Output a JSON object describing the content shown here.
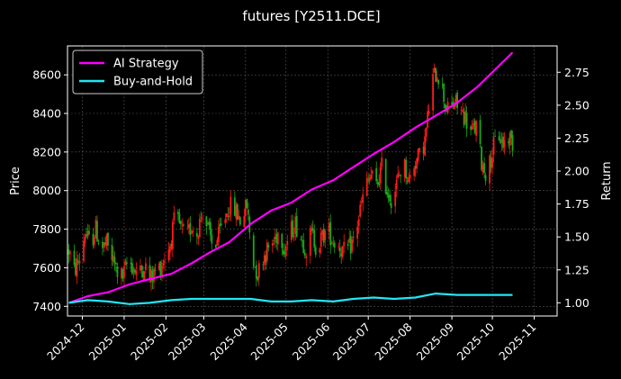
{
  "chart_data": {
    "type": "line",
    "title": "futures [Y2511.DCE]",
    "ylabel": "Price",
    "y2label": "Return",
    "grid": true,
    "legend_position": "top-left",
    "xlim": [
      "2024-11-20",
      "2025-11-18"
    ],
    "ylim": [
      7350,
      8750
    ],
    "y2lim": [
      0.9,
      2.95
    ],
    "x_ticks": [
      "2024-12",
      "2025-01",
      "2025-02",
      "2025-03",
      "2025-04",
      "2025-05",
      "2025-06",
      "2025-07",
      "2025-08",
      "2025-09",
      "2025-10",
      "2025-11"
    ],
    "y_ticks": [
      7400,
      7600,
      7800,
      8000,
      8200,
      8400,
      8600
    ],
    "y2_ticks": [
      "1.00",
      "1.25",
      "1.50",
      "1.75",
      "2.00",
      "2.25",
      "2.50",
      "2.75"
    ],
    "colors": {
      "background": "#000000",
      "grid": "#555555",
      "ai_strategy": "#ff00ff",
      "buy_and_hold": "#22e5f5",
      "candle_up": "#ff1a1a",
      "candle_down": "#1aa81a"
    },
    "price_path": [
      [
        "2024-11-21",
        7690
      ],
      [
        "2024-11-25",
        7580
      ],
      [
        "2024-11-29",
        7650
      ],
      [
        "2024-12-03",
        7780
      ],
      [
        "2024-12-07",
        7720
      ],
      [
        "2024-12-11",
        7800
      ],
      [
        "2024-12-15",
        7700
      ],
      [
        "2024-12-19",
        7720
      ],
      [
        "2024-12-23",
        7650
      ],
      [
        "2024-12-27",
        7580
      ],
      [
        "2024-12-31",
        7550
      ],
      [
        "2025-01-04",
        7640
      ],
      [
        "2025-01-08",
        7600
      ],
      [
        "2025-01-12",
        7560
      ],
      [
        "2025-01-16",
        7620
      ],
      [
        "2025-01-20",
        7540
      ],
      [
        "2025-01-24",
        7580
      ],
      [
        "2025-01-28",
        7610
      ],
      [
        "2025-02-04",
        7720
      ],
      [
        "2025-02-08",
        7870
      ],
      [
        "2025-02-12",
        7800
      ],
      [
        "2025-02-16",
        7750
      ],
      [
        "2025-02-20",
        7820
      ],
      [
        "2025-02-24",
        7780
      ],
      [
        "2025-02-28",
        7900
      ],
      [
        "2025-03-04",
        7800
      ],
      [
        "2025-03-08",
        7700
      ],
      [
        "2025-03-12",
        7760
      ],
      [
        "2025-03-16",
        7850
      ],
      [
        "2025-03-20",
        7920
      ],
      [
        "2025-03-24",
        7900
      ],
      [
        "2025-03-28",
        7850
      ],
      [
        "2025-04-02",
        7920
      ],
      [
        "2025-04-06",
        7650
      ],
      [
        "2025-04-10",
        7570
      ],
      [
        "2025-04-14",
        7660
      ],
      [
        "2025-04-18",
        7700
      ],
      [
        "2025-04-22",
        7740
      ],
      [
        "2025-04-26",
        7800
      ],
      [
        "2025-04-30",
        7700
      ],
      [
        "2025-05-04",
        7780
      ],
      [
        "2025-05-08",
        7830
      ],
      [
        "2025-05-12",
        7760
      ],
      [
        "2025-05-16",
        7700
      ],
      [
        "2025-05-20",
        7780
      ],
      [
        "2025-05-24",
        7700
      ],
      [
        "2025-05-28",
        7760
      ],
      [
        "2025-06-01",
        7800
      ],
      [
        "2025-06-05",
        7740
      ],
      [
        "2025-06-09",
        7720
      ],
      [
        "2025-06-13",
        7680
      ],
      [
        "2025-06-17",
        7700
      ],
      [
        "2025-06-21",
        7760
      ],
      [
        "2025-06-25",
        7900
      ],
      [
        "2025-06-29",
        8020
      ],
      [
        "2025-07-03",
        8080
      ],
      [
        "2025-07-07",
        8020
      ],
      [
        "2025-07-11",
        8120
      ],
      [
        "2025-07-15",
        8000
      ],
      [
        "2025-07-19",
        7950
      ],
      [
        "2025-07-23",
        8060
      ],
      [
        "2025-07-27",
        8150
      ],
      [
        "2025-07-31",
        8050
      ],
      [
        "2025-08-04",
        8140
      ],
      [
        "2025-08-08",
        8180
      ],
      [
        "2025-08-12",
        8260
      ],
      [
        "2025-08-15",
        8430
      ],
      [
        "2025-08-18",
        8580
      ],
      [
        "2025-08-21",
        8620
      ],
      [
        "2025-08-24",
        8560
      ],
      [
        "2025-08-27",
        8450
      ],
      [
        "2025-08-30",
        8400
      ],
      [
        "2025-09-03",
        8460
      ],
      [
        "2025-09-07",
        8420
      ],
      [
        "2025-09-11",
        8380
      ],
      [
        "2025-09-15",
        8300
      ],
      [
        "2025-09-19",
        8330
      ],
      [
        "2025-09-23",
        8150
      ],
      [
        "2025-09-27",
        8080
      ],
      [
        "2025-10-01",
        8200
      ],
      [
        "2025-10-05",
        8300
      ],
      [
        "2025-10-09",
        8240
      ],
      [
        "2025-10-13",
        8280
      ],
      [
        "2025-10-16",
        8250
      ]
    ],
    "series": [
      {
        "name": "AI Strategy",
        "x": [
          "2024-11-21",
          "2024-12-05",
          "2024-12-20",
          "2025-01-05",
          "2025-01-20",
          "2025-02-05",
          "2025-02-20",
          "2025-03-05",
          "2025-03-20",
          "2025-04-05",
          "2025-04-20",
          "2025-05-05",
          "2025-05-20",
          "2025-06-05",
          "2025-06-20",
          "2025-07-05",
          "2025-07-20",
          "2025-08-05",
          "2025-08-20",
          "2025-09-05",
          "2025-09-20",
          "2025-10-05",
          "2025-10-16"
        ],
        "y": [
          1.0,
          1.05,
          1.08,
          1.14,
          1.18,
          1.22,
          1.3,
          1.38,
          1.46,
          1.6,
          1.7,
          1.76,
          1.86,
          1.93,
          2.03,
          2.13,
          2.22,
          2.33,
          2.42,
          2.52,
          2.64,
          2.79,
          2.9
        ]
      },
      {
        "name": "Buy-and-Hold",
        "x": [
          "2024-11-21",
          "2024-12-05",
          "2024-12-20",
          "2025-01-05",
          "2025-01-20",
          "2025-02-05",
          "2025-02-20",
          "2025-03-05",
          "2025-03-20",
          "2025-04-05",
          "2025-04-20",
          "2025-05-05",
          "2025-05-20",
          "2025-06-05",
          "2025-06-20",
          "2025-07-05",
          "2025-07-20",
          "2025-08-05",
          "2025-08-20",
          "2025-09-05",
          "2025-09-20",
          "2025-10-05",
          "2025-10-16"
        ],
        "y": [
          1.0,
          1.02,
          1.01,
          0.99,
          1.0,
          1.02,
          1.03,
          1.03,
          1.03,
          1.03,
          1.01,
          1.01,
          1.02,
          1.01,
          1.03,
          1.04,
          1.03,
          1.04,
          1.07,
          1.06,
          1.06,
          1.06,
          1.06
        ]
      }
    ]
  }
}
